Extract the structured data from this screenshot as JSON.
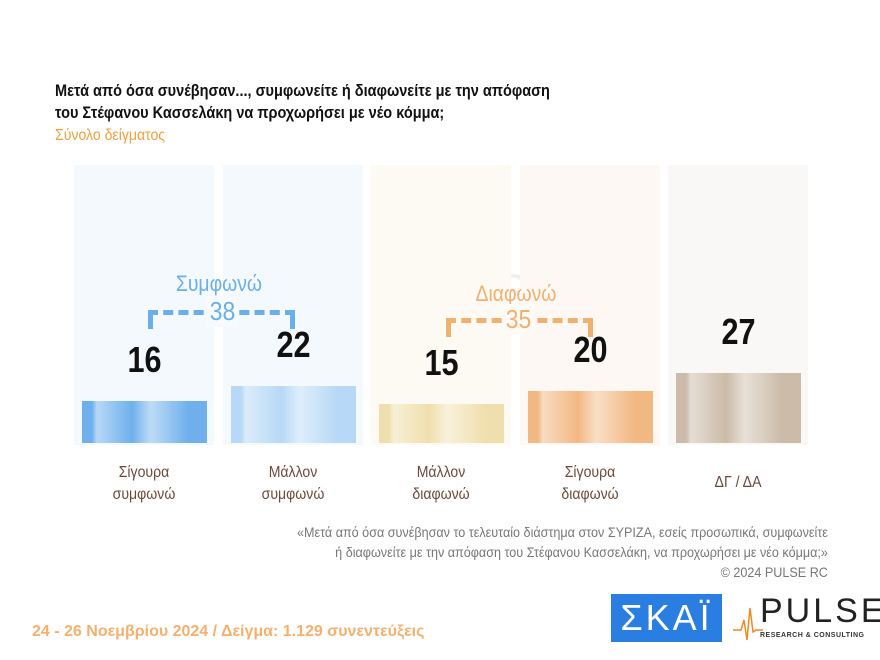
{
  "title_line1": "Μετά από όσα συνέβησαν..., συμφωνείτε ή διαφωνείτε με την απόφαση",
  "title_line2": "του Στέφανου Κασσελάκη να προχωρήσει με νέο κόμμα;",
  "subtitle": "Σύνολο δείγματος",
  "chart_data": {
    "type": "bar",
    "categories": [
      "Σίγουρα συμφωνώ",
      "Μάλλον συμφωνώ",
      "Μάλλον διαφωνώ",
      "Σίγουρα διαφωνώ",
      "ΔΓ / ΔΑ"
    ],
    "category_lines": [
      [
        "Σίγουρα",
        "συμφωνώ"
      ],
      [
        "Μάλλον",
        "συμφωνώ"
      ],
      [
        "Μάλλον",
        "διαφωνώ"
      ],
      [
        "Σίγουρα",
        "διαφωνώ"
      ],
      [
        "ΔΓ / ΔΑ",
        ""
      ]
    ],
    "values": [
      16,
      22,
      15,
      20,
      27
    ],
    "value_labels": [
      "16",
      "22",
      "15",
      "20",
      "27"
    ],
    "colors": [
      "#6fb0ec",
      "#b7d8f6",
      "#f0dfae",
      "#f2b883",
      "#cbbba8"
    ],
    "groups": [
      {
        "label": "Συμφωνώ",
        "total": "38",
        "color": "#6aaeea"
      },
      {
        "label": "Διαφωνώ",
        "total": "35",
        "color": "#f0b070"
      }
    ],
    "grid": false
  },
  "note_line1": "«Μετά από όσα συνέβησαν το τελευταίο διάστημα στον ΣΥΡΙΖΑ, εσείς προσωπικά, συμφωνείτε",
  "note_line2": "ή διαφωνείτε με την απόφαση του Στέφανου Κασσελάκη, να προχωρήσει με νέο κόμμα;»",
  "copyright": "©  2024  PULSE RC",
  "footer": "24 - 26 Νοεμβρίου 2024  /  Δείγμα:  1.129 συνεντεύξεις",
  "logos": {
    "skai": "ΣΚΑΪ",
    "pulse": "PULSE",
    "pulse_sub": "RESEARCH & CONSULTING"
  }
}
